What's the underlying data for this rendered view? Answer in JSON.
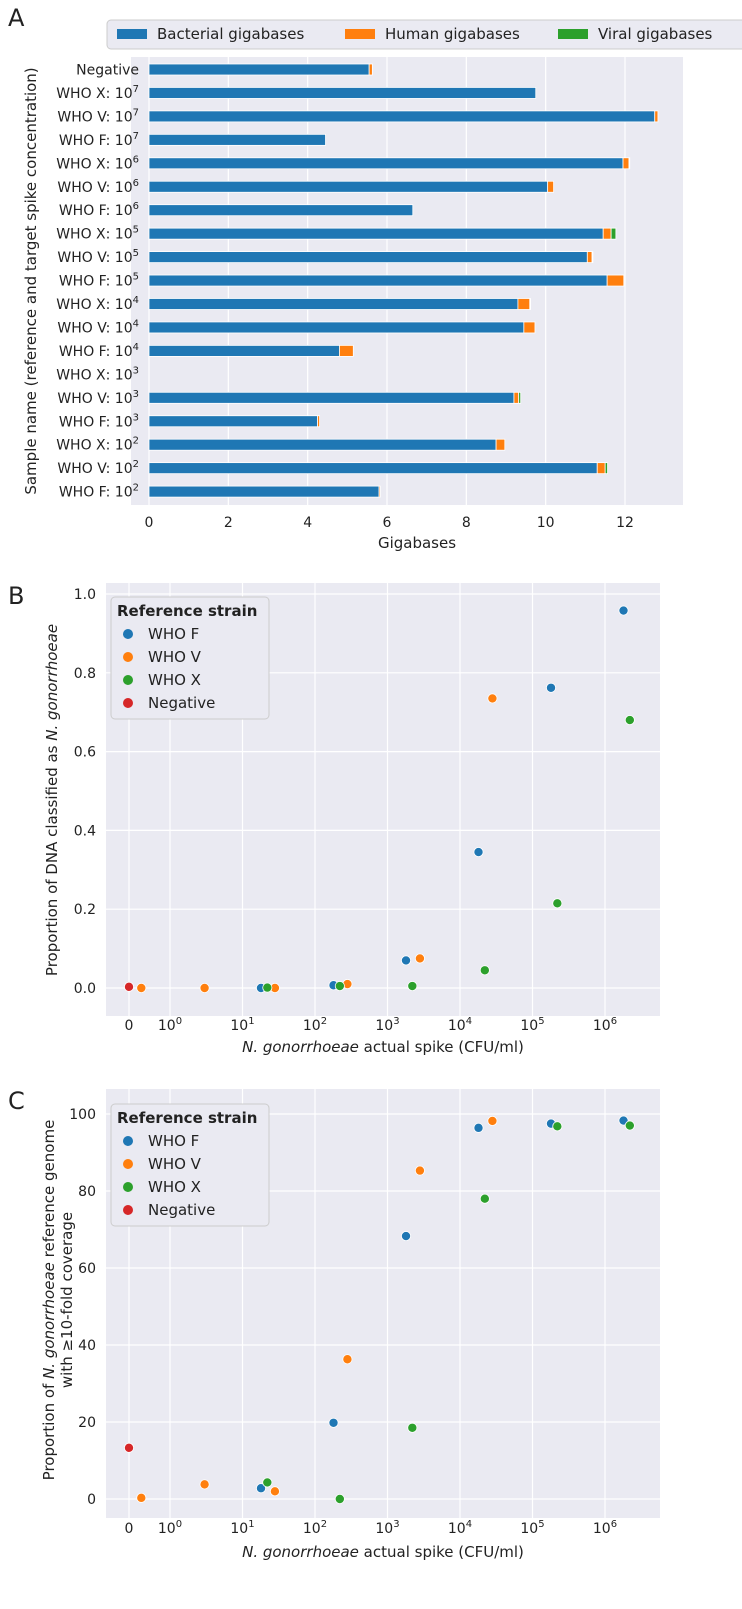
{
  "panels": {
    "a": "A",
    "b": "B",
    "c": "C"
  },
  "colors": {
    "bacterial": "#1f77b4",
    "human": "#ff7f0e",
    "viral": "#2ca02c",
    "who_f": "#1f77b4",
    "who_v": "#ff7f0e",
    "who_x": "#2ca02c",
    "negative": "#d62728",
    "plot_bg": "#eaeaf2",
    "grid": "#ffffff"
  },
  "chart_data": [
    {
      "type": "bar",
      "orientation": "horizontal",
      "stacked": true,
      "xlabel": "Gigabases",
      "ylabel": "Sample name (reference and target spike concentration)",
      "xlim": [
        0,
        13.4
      ],
      "xticks": [
        "0",
        "2",
        "4",
        "6",
        "8",
        "10",
        "12"
      ],
      "legend_placement": "top",
      "categories": [
        {
          "base": "Negative",
          "exp": ""
        },
        {
          "base": "WHO X: 10",
          "exp": "7"
        },
        {
          "base": "WHO V: 10",
          "exp": "7"
        },
        {
          "base": "WHO F: 10",
          "exp": "7"
        },
        {
          "base": "WHO X: 10",
          "exp": "6"
        },
        {
          "base": "WHO V: 10",
          "exp": "6"
        },
        {
          "base": "WHO F: 10",
          "exp": "6"
        },
        {
          "base": "WHO X: 10",
          "exp": "5"
        },
        {
          "base": "WHO V: 10",
          "exp": "5"
        },
        {
          "base": "WHO F: 10",
          "exp": "5"
        },
        {
          "base": "WHO X: 10",
          "exp": "4"
        },
        {
          "base": "WHO V: 10",
          "exp": "4"
        },
        {
          "base": "WHO F: 10",
          "exp": "4"
        },
        {
          "base": "WHO X: 10",
          "exp": "3"
        },
        {
          "base": "WHO V: 10",
          "exp": "3"
        },
        {
          "base": "WHO F: 10",
          "exp": "3"
        },
        {
          "base": "WHO X: 10",
          "exp": "2"
        },
        {
          "base": "WHO V: 10",
          "exp": "2"
        },
        {
          "base": "WHO F: 10",
          "exp": "2"
        }
      ],
      "series": [
        {
          "name": "Bacterial gigabases",
          "color": "#1f77b4",
          "values": [
            5.55,
            9.75,
            12.75,
            4.45,
            11.95,
            10.05,
            6.65,
            11.45,
            11.05,
            11.55,
            9.3,
            9.45,
            4.8,
            0,
            9.2,
            4.25,
            8.75,
            11.3,
            5.8
          ]
        },
        {
          "name": "Human gigabases",
          "color": "#ff7f0e",
          "values": [
            0.08,
            0,
            0.08,
            0,
            0.15,
            0.15,
            0,
            0.2,
            0.12,
            0.42,
            0.3,
            0.28,
            0.35,
            0,
            0.12,
            0.05,
            0.22,
            0.2,
            0.03
          ]
        },
        {
          "name": "Viral gigabases",
          "color": "#2ca02c",
          "values": [
            0,
            0,
            0,
            0,
            0.02,
            0,
            0,
            0.12,
            0.02,
            0,
            0.02,
            0,
            0,
            0,
            0.05,
            0,
            0,
            0.06,
            0
          ]
        }
      ]
    },
    {
      "type": "scatter",
      "xscale": "symlog",
      "ylabel_parts": [
        "Proportion of DNA classified as ",
        "N. gonorrhoeae"
      ],
      "xlabel_parts": [
        "N. gonorrhoeae",
        " actual spike (CFU/ml)"
      ],
      "ylim": [
        0,
        1.0
      ],
      "yticks": [
        "0.0",
        "0.2",
        "0.4",
        "0.6",
        "0.8",
        "1.0"
      ],
      "xticks": [
        {
          "base": "0",
          "exp": ""
        },
        {
          "base": "10",
          "exp": "0"
        },
        {
          "base": "10",
          "exp": "1"
        },
        {
          "base": "10",
          "exp": "2"
        },
        {
          "base": "10",
          "exp": "3"
        },
        {
          "base": "10",
          "exp": "4"
        },
        {
          "base": "10",
          "exp": "5"
        },
        {
          "base": "10",
          "exp": "6"
        }
      ],
      "legend_title": "Reference strain",
      "legend_placement": "upper-left",
      "series": [
        {
          "name": "WHO F",
          "color": "#1f77b4",
          "points": [
            [
              18,
              0.0
            ],
            [
              180,
              0.007
            ],
            [
              1800,
              0.07
            ],
            [
              18000,
              0.345
            ],
            [
              180000,
              0.762
            ],
            [
              1800000,
              0.958
            ]
          ]
        },
        {
          "name": "WHO V",
          "color": "#ff7f0e",
          "points": [
            [
              0.3,
              0.0
            ],
            [
              3,
              0.0
            ],
            [
              28,
              0.0
            ],
            [
              280,
              0.01
            ],
            [
              2800,
              0.075
            ],
            [
              28000,
              0.735
            ]
          ]
        },
        {
          "name": "WHO X",
          "color": "#2ca02c",
          "points": [
            [
              22,
              0.001
            ],
            [
              220,
              0.005
            ],
            [
              2200,
              0.005
            ],
            [
              22000,
              0.045
            ],
            [
              220000,
              0.215
            ],
            [
              2200000,
              0.68
            ]
          ]
        },
        {
          "name": "Negative",
          "color": "#d62728",
          "points": [
            [
              0,
              0.003
            ]
          ]
        }
      ]
    },
    {
      "type": "scatter",
      "xscale": "symlog",
      "ylabel_parts": [
        "Proportion of ",
        "N. gonorrhoeae",
        " reference genome"
      ],
      "ylabel_line2": "with ≥10-fold coverage",
      "xlabel_parts": [
        "N. gonorrhoeae",
        " actual spike (CFU/ml)"
      ],
      "ylim": [
        -2,
        103
      ],
      "yticks": [
        "0",
        "20",
        "40",
        "60",
        "80",
        "100"
      ],
      "xticks": [
        {
          "base": "0",
          "exp": ""
        },
        {
          "base": "10",
          "exp": "0"
        },
        {
          "base": "10",
          "exp": "1"
        },
        {
          "base": "10",
          "exp": "2"
        },
        {
          "base": "10",
          "exp": "3"
        },
        {
          "base": "10",
          "exp": "4"
        },
        {
          "base": "10",
          "exp": "5"
        },
        {
          "base": "10",
          "exp": "6"
        }
      ],
      "legend_title": "Reference strain",
      "legend_placement": "upper-left",
      "series": [
        {
          "name": "WHO F",
          "color": "#1f77b4",
          "points": [
            [
              18,
              2.8
            ],
            [
              180,
              19.8
            ],
            [
              1800,
              68.3
            ],
            [
              18000,
              96.4
            ],
            [
              180000,
              97.5
            ],
            [
              1800000,
              98.3
            ]
          ]
        },
        {
          "name": "WHO V",
          "color": "#ff7f0e",
          "points": [
            [
              0.3,
              0.3
            ],
            [
              3,
              3.8
            ],
            [
              28,
              2.0
            ],
            [
              280,
              36.3
            ],
            [
              2800,
              85.3
            ],
            [
              28000,
              98.2
            ]
          ]
        },
        {
          "name": "WHO X",
          "color": "#2ca02c",
          "points": [
            [
              22,
              4.3
            ],
            [
              220,
              0.0
            ],
            [
              2200,
              18.5
            ],
            [
              22000,
              78.0
            ],
            [
              220000,
              96.8
            ],
            [
              2200000,
              97.0
            ]
          ]
        },
        {
          "name": "Negative",
          "color": "#d62728",
          "points": [
            [
              0,
              13.3
            ]
          ]
        }
      ]
    }
  ]
}
